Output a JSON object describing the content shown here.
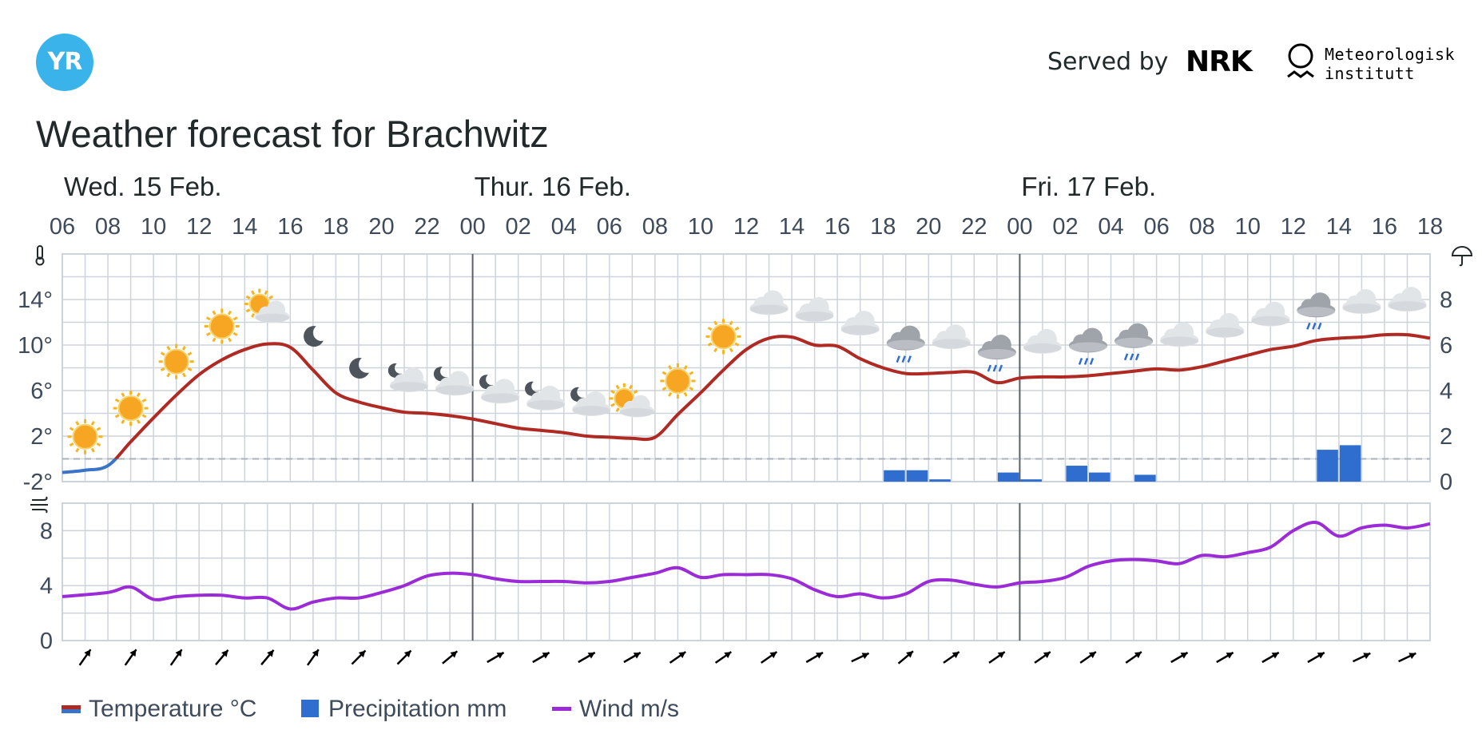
{
  "header": {
    "logo_text": "YR",
    "served_by": "Served by",
    "nrk_logo": "NRK",
    "met_line1": "Meteorologisk",
    "met_line2": "institutt"
  },
  "page_title": "Weather forecast for Brachwitz",
  "colors": {
    "temperature": "#b02a24",
    "temperature_below_zero": "#3a74c9",
    "precipitation": "#2f6ecf",
    "wind": "#9b2bd6",
    "grid": "#cdd3da",
    "day_divider": "#5a6068"
  },
  "icons": {
    "temperature_axis": "thermometer-icon",
    "precipitation_axis": "umbrella-icon",
    "wind_axis": "wind-icon"
  },
  "legend": {
    "temperature": "Temperature °C",
    "precipitation": "Precipitation mm",
    "wind": "Wind m/s"
  },
  "chart_data": [
    {
      "type": "line",
      "title": "",
      "days": [
        {
          "label": "Wed. 15 Feb.",
          "start_hour": 0
        },
        {
          "label": "Thur. 16 Feb.",
          "start_hour": 18
        },
        {
          "label": "Fri. 17 Feb.",
          "start_hour": 42
        }
      ],
      "hour_ticks": [
        "06",
        "08",
        "10",
        "12",
        "14",
        "16",
        "18",
        "20",
        "22",
        "00",
        "02",
        "04",
        "06",
        "08",
        "10",
        "12",
        "14",
        "16",
        "18",
        "20",
        "22",
        "00",
        "02",
        "04",
        "06",
        "08",
        "10",
        "12",
        "14",
        "16",
        "18"
      ],
      "x_range_hours_from_start": [
        0,
        60
      ],
      "temperature_axis": {
        "ticks": [
          "-2°",
          "2°",
          "6°",
          "10°",
          "14°"
        ],
        "ylim": [
          -2,
          18
        ]
      },
      "precip_axis": {
        "ticks": [
          "0",
          "2",
          "4",
          "6",
          "8"
        ],
        "ylim": [
          0,
          10
        ]
      },
      "series": [
        {
          "name": "Temperature °C",
          "x": [
            0,
            1,
            2,
            3,
            4,
            5,
            6,
            7,
            8,
            9,
            10,
            11,
            12,
            13,
            14,
            15,
            16,
            17,
            18,
            19,
            20,
            21,
            22,
            23,
            24,
            25,
            26,
            27,
            28,
            29,
            30,
            31,
            32,
            33,
            34,
            35,
            36,
            37,
            38,
            39,
            40,
            41,
            42,
            43,
            44,
            45,
            46,
            47,
            48,
            49,
            50,
            51,
            52,
            53,
            54,
            55,
            56,
            57,
            58,
            59,
            60
          ],
          "y": [
            -1.2,
            -1.0,
            -0.6,
            1.5,
            3.6,
            5.6,
            7.4,
            8.7,
            9.6,
            10.1,
            9.8,
            7.8,
            5.8,
            5.0,
            4.5,
            4.1,
            4.0,
            3.8,
            3.5,
            3.1,
            2.7,
            2.5,
            2.3,
            2.0,
            1.9,
            1.8,
            1.9,
            3.9,
            5.8,
            7.8,
            9.6,
            10.6,
            10.7,
            10.0,
            9.9,
            8.8,
            8.0,
            7.5,
            7.5,
            7.6,
            7.6,
            6.7,
            7.1,
            7.2,
            7.2,
            7.3,
            7.5,
            7.7,
            7.9,
            7.8,
            8.1,
            8.6,
            9.1,
            9.6,
            9.9,
            10.4,
            10.6,
            10.7,
            10.9,
            10.9,
            10.6
          ]
        },
        {
          "name": "Precipitation mm",
          "x": [
            36,
            37,
            38,
            41,
            42,
            44,
            45,
            47,
            55,
            56
          ],
          "y": [
            0.5,
            0.5,
            0.1,
            0.4,
            0.1,
            0.7,
            0.4,
            0.3,
            1.4,
            1.6
          ]
        }
      ],
      "symbols": [
        {
          "hour": 1,
          "icon": "sun-icon"
        },
        {
          "hour": 3,
          "icon": "sun-icon"
        },
        {
          "hour": 5,
          "icon": "sun-icon"
        },
        {
          "hour": 7,
          "icon": "sun-icon"
        },
        {
          "hour": 9,
          "icon": "sun-cloud-icon"
        },
        {
          "hour": 11,
          "icon": "moon-icon"
        },
        {
          "hour": 13,
          "icon": "moon-icon"
        },
        {
          "hour": 15,
          "icon": "moon-cloud-icon"
        },
        {
          "hour": 17,
          "icon": "moon-cloud-icon"
        },
        {
          "hour": 19,
          "icon": "moon-cloud-icon"
        },
        {
          "hour": 21,
          "icon": "moon-cloud-icon"
        },
        {
          "hour": 23,
          "icon": "moon-cloud-icon"
        },
        {
          "hour": 25,
          "icon": "sun-cloud-icon"
        },
        {
          "hour": 27,
          "icon": "sun-icon"
        },
        {
          "hour": 29,
          "icon": "sun-icon"
        },
        {
          "hour": 31,
          "icon": "cloud-icon"
        },
        {
          "hour": 33,
          "icon": "cloud-icon"
        },
        {
          "hour": 35,
          "icon": "cloud-icon"
        },
        {
          "hour": 37,
          "icon": "rain-cloud-icon"
        },
        {
          "hour": 39,
          "icon": "cloud-icon"
        },
        {
          "hour": 41,
          "icon": "rain-cloud-icon"
        },
        {
          "hour": 43,
          "icon": "cloud-icon"
        },
        {
          "hour": 45,
          "icon": "rain-cloud-icon"
        },
        {
          "hour": 47,
          "icon": "rain-cloud-icon"
        },
        {
          "hour": 49,
          "icon": "cloud-icon"
        },
        {
          "hour": 51,
          "icon": "cloud-icon"
        },
        {
          "hour": 53,
          "icon": "cloud-icon"
        },
        {
          "hour": 55,
          "icon": "rain-cloud-icon"
        },
        {
          "hour": 57,
          "icon": "cloud-icon"
        },
        {
          "hour": 59,
          "icon": "cloud-icon"
        }
      ]
    },
    {
      "type": "line",
      "title": "",
      "wind_axis": {
        "ticks": [
          "0",
          "4",
          "8"
        ],
        "ylim": [
          0,
          10
        ]
      },
      "series": [
        {
          "name": "Wind m/s",
          "x": [
            0,
            2,
            3,
            4,
            5,
            6,
            7,
            8,
            9,
            10,
            11,
            12,
            13,
            14,
            15,
            16,
            17,
            18,
            19,
            20,
            21,
            22,
            23,
            24,
            25,
            26,
            27,
            28,
            29,
            30,
            31,
            32,
            33,
            34,
            35,
            36,
            37,
            38,
            39,
            40,
            41,
            42,
            43,
            44,
            45,
            46,
            47,
            48,
            49,
            50,
            51,
            52,
            53,
            54,
            55,
            56,
            57,
            58,
            59,
            60
          ],
          "y": [
            3.2,
            3.5,
            3.9,
            3.0,
            3.2,
            3.3,
            3.3,
            3.1,
            3.1,
            2.3,
            2.8,
            3.1,
            3.1,
            3.5,
            4.0,
            4.7,
            4.9,
            4.8,
            4.5,
            4.3,
            4.3,
            4.3,
            4.2,
            4.3,
            4.6,
            4.9,
            5.3,
            4.6,
            4.8,
            4.8,
            4.8,
            4.5,
            3.7,
            3.2,
            3.4,
            3.1,
            3.4,
            4.3,
            4.4,
            4.1,
            3.9,
            4.2,
            4.3,
            4.6,
            5.4,
            5.8,
            5.9,
            5.8,
            5.6,
            6.2,
            6.1,
            6.4,
            6.8,
            8.0,
            8.6,
            7.6,
            8.2,
            8.4,
            8.2,
            8.5
          ]
        }
      ],
      "wind_direction_angles_deg": [
        35,
        35,
        35,
        40,
        40,
        35,
        45,
        45,
        50,
        60,
        60,
        60,
        60,
        55,
        55,
        55,
        60,
        65,
        50,
        55,
        55,
        55,
        55,
        55,
        60,
        60,
        60,
        60,
        65,
        65
      ]
    }
  ]
}
